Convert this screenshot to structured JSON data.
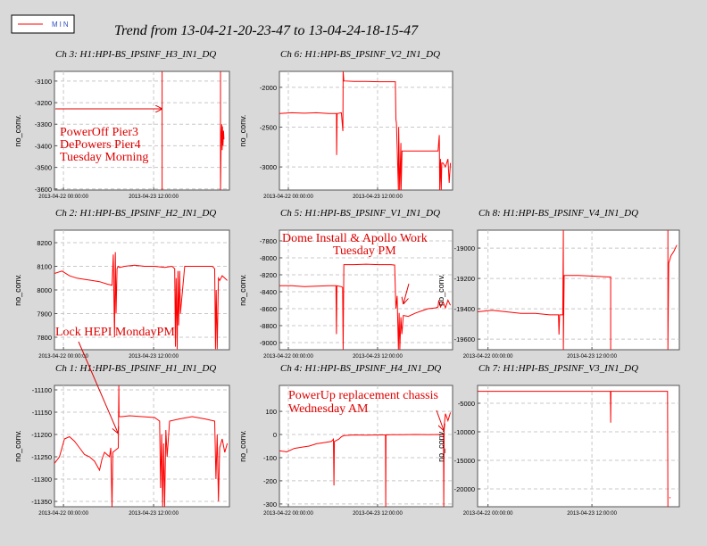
{
  "title": "Trend from 13-04-21-20-23-47 to 13-04-24-18-15-47",
  "legend": {
    "label": "MIN",
    "color": "#ff0000"
  },
  "chart_data": [
    {
      "type": "line",
      "title": "Ch 3: H1:HPI-BS_IPSINF_H3_IN1_DQ",
      "ylabel": "no_conv.",
      "x": [
        43,
        43,
        43,
        66.3,
        66.3,
        66.6,
        66.8,
        67,
        67.1,
        67.3,
        67.5,
        67.7
      ],
      "series": [
        {
          "color": "#ff0000",
          "values": [
            -3055,
            -3605,
            null,
            -3055,
            -3605,
            -3360,
            -3300,
            -3420,
            -3310,
            -3400,
            -3330,
            -3370
          ]
        }
      ],
      "xlim": [
        0,
        69.87
      ],
      "ylim": [
        -3605,
        -3055
      ],
      "xticks": [
        {
          "value": 3.6,
          "label": "2013-04-22 00:00:00"
        },
        {
          "value": 39.6,
          "label": "2013-04-23 12:00:00"
        }
      ],
      "yticks": [
        -3100,
        -3200,
        -3300,
        -3400,
        -3500,
        -3600
      ],
      "grid": true,
      "annotations": [
        {
          "text": "PowerOff Pier3"
        },
        {
          "text": "DePowers Pier4"
        },
        {
          "text": "Tuesday Morning"
        }
      ]
    },
    {
      "type": "line",
      "title": "Ch 6: H1:HPI-BS_IPSINF_V2_IN1_DQ",
      "ylabel": "no_conv.",
      "x": [
        0,
        5,
        10,
        15,
        20,
        23,
        23.1,
        23.3,
        25,
        25.6,
        25.7,
        26,
        30,
        35,
        40,
        45,
        46.8,
        47,
        47.2,
        48,
        48.1,
        48.5,
        49,
        49.1,
        49.5,
        50,
        55,
        60,
        64,
        64.5,
        64.7,
        65,
        65.3,
        65.5,
        66,
        67,
        68,
        68.5,
        69
      ],
      "series": [
        {
          "color": "#ff0000",
          "values": [
            -2330,
            -2320,
            -2325,
            -2320,
            -2330,
            -2330,
            -2850,
            -2330,
            -2320,
            -2550,
            -1800,
            -1920,
            -1925,
            -1925,
            -1930,
            -1930,
            -1930,
            -2400,
            -2450,
            -3290,
            -2500,
            -3290,
            -2700,
            -3290,
            -2800,
            -2800,
            -2800,
            -2800,
            -2800,
            -2600,
            -3290,
            -2900,
            -3290,
            -2950,
            -2950,
            -3000,
            -2900,
            -3200,
            -2950
          ]
        }
      ],
      "xlim": [
        0,
        69.87
      ],
      "ylim": [
        -3290,
        -1800
      ],
      "xticks": [
        {
          "value": 3.6,
          "label": "2013-04-22 00:00:00"
        },
        {
          "value": 39.6,
          "label": "2013-04-23 12:00:00"
        }
      ],
      "yticks": [
        -2000,
        -2500,
        -3000
      ],
      "grid": true,
      "annotations": []
    },
    {
      "type": "line",
      "title": "Ch 2: H1:HPI-BS_IPSINF_H2_IN1_DQ",
      "ylabel": "no_conv.",
      "x": [
        0,
        3,
        6,
        9,
        12,
        15,
        18,
        21,
        23,
        23.5,
        24,
        24.3,
        24.6,
        25,
        25.4,
        26,
        28,
        32,
        36,
        40,
        44,
        47,
        48,
        48.3,
        48.6,
        49,
        49.3,
        49.6,
        50,
        50.3,
        52,
        56,
        60,
        63,
        64,
        64.3,
        64.6,
        65,
        65.5,
        66,
        67,
        68,
        69
      ],
      "series": [
        {
          "color": "#ff0000",
          "values": [
            8070,
            8080,
            8060,
            8050,
            8045,
            8040,
            8035,
            8025,
            8020,
            8150,
            7800,
            8160,
            7900,
            8090,
            8100,
            8095,
            8100,
            8105,
            8100,
            8100,
            8095,
            8100,
            8090,
            7760,
            8050,
            7750,
            8080,
            7850,
            8080,
            7900,
            8100,
            8100,
            8100,
            8100,
            8090,
            7750,
            8000,
            7750,
            8050,
            8040,
            8060,
            8050,
            8040
          ]
        }
      ],
      "xlim": [
        0,
        69.87
      ],
      "ylim": [
        7747,
        8253
      ],
      "xticks": [
        {
          "value": 3.6,
          "label": "2013-04-22 00:00:00"
        },
        {
          "value": 39.6,
          "label": "2013-04-23 12:00:00"
        }
      ],
      "yticks": [
        7800,
        7900,
        8000,
        8100,
        8200
      ],
      "grid": true,
      "annotations": [
        {
          "text": "Lock HEPI MondayPM"
        }
      ]
    },
    {
      "type": "line",
      "title": "Ch 5: H1:HPI-BS_IPSINF_V1_IN1_DQ",
      "ylabel": "no_conv.",
      "x": [
        0,
        5,
        10,
        15,
        20,
        22.8,
        23,
        23.2,
        25,
        25.5,
        25.7,
        26,
        30,
        35,
        40,
        45,
        46.5,
        47,
        47.5,
        48,
        48.3,
        48.6,
        49,
        49.4,
        50,
        52,
        55,
        58,
        60,
        63,
        64,
        64.3,
        65,
        66,
        67,
        68,
        69
      ],
      "series": [
        {
          "color": "#ff0000",
          "values": [
            -8330,
            -8330,
            -8340,
            -8335,
            -8330,
            -8330,
            -8900,
            -8330,
            -8340,
            -8350,
            -9080,
            -8080,
            -8080,
            -8075,
            -8080,
            -8080,
            -8085,
            -8600,
            -8450,
            -9080,
            -8650,
            -9080,
            -8700,
            -8900,
            -8680,
            -8690,
            -8650,
            -8620,
            -8600,
            -8590,
            -8580,
            -8500,
            -8580,
            -8520,
            -8590,
            -8500,
            -8560
          ]
        }
      ],
      "xlim": [
        0,
        69.87
      ],
      "ylim": [
        -9084,
        -7674
      ],
      "xticks": [
        {
          "value": 3.6,
          "label": "2013-04-22 00:00:00"
        },
        {
          "value": 39.6,
          "label": "2013-04-23 12:00:00"
        }
      ],
      "yticks": [
        -7800,
        -8000,
        -8200,
        -8400,
        -8600,
        -8800,
        -9000
      ],
      "grid": true,
      "annotations": [
        {
          "text": "Dome Install & Apollo Work"
        },
        {
          "text": "Tuesday PM"
        }
      ]
    },
    {
      "type": "line",
      "title": "Ch 8: H1:HPI-BS_IPSINF_V4_IN1_DQ",
      "ylabel": "no_conv.",
      "x": [
        0,
        5,
        10,
        15,
        20,
        25,
        28,
        28.2,
        28.4,
        29.5,
        29.7,
        29.7,
        30,
        35,
        40,
        45,
        46.1,
        46.1,
        46.1,
        65.9,
        65.9,
        66.2,
        67,
        68,
        69
      ],
      "series": [
        {
          "color": "#ff0000",
          "values": [
            -19420,
            -19410,
            -19420,
            -19430,
            -19430,
            -19440,
            -19440,
            -19570,
            -19440,
            -19440,
            -18882,
            -19670,
            -19180,
            -19180,
            -19185,
            -19190,
            -19190,
            -19670,
            null,
            -18882,
            -19670,
            -19100,
            -19050,
            -19020,
            -18980
          ]
        }
      ],
      "xlim": [
        0,
        69.87
      ],
      "ylim": [
        -19670,
        -18882
      ],
      "xticks": [
        {
          "value": 3.6,
          "label": "2013-04-22 00:00:00"
        },
        {
          "value": 39.6,
          "label": "2013-04-23 12:00:00"
        }
      ],
      "yticks": [
        -19000,
        -19200,
        -19400,
        -19600
      ],
      "grid": true,
      "annotations": []
    },
    {
      "type": "line",
      "title": "Ch 1: H1:HPI-BS_IPSINF_H1_IN1_DQ",
      "ylabel": "no_conv.",
      "x": [
        0,
        2,
        4,
        6,
        8,
        10,
        12,
        14,
        16,
        17,
        18,
        19,
        20,
        21,
        22,
        22.5,
        23,
        23.3,
        25.5,
        25.7,
        25.8,
        27,
        30,
        35,
        40,
        42,
        42.4,
        42.8,
        43.2,
        43.6,
        44,
        44.5,
        45,
        46,
        50,
        55,
        60,
        64,
        64.5,
        65,
        65.5,
        66,
        67,
        68,
        69
      ],
      "series": [
        {
          "color": "#ff0000",
          "values": [
            -11265,
            -11250,
            -11210,
            -11205,
            -11215,
            -11230,
            -11245,
            -11250,
            -11260,
            -11270,
            -11280,
            -11255,
            -11240,
            -11245,
            -11250,
            -11230,
            -11362,
            -11240,
            -11230,
            -11090,
            -11160,
            -11160,
            -11158,
            -11160,
            -11162,
            -11170,
            -11320,
            -11200,
            -11362,
            -11220,
            -11362,
            -11190,
            -11250,
            -11170,
            -11165,
            -11160,
            -11165,
            -11170,
            -11300,
            -11200,
            -11350,
            -11230,
            -11210,
            -11240,
            -11220
          ]
        }
      ],
      "xlim": [
        0,
        69.87
      ],
      "ylim": [
        -11362,
        -11090
      ],
      "xticks": [
        {
          "value": 3.6,
          "label": "2013-04-22 00:00:00"
        },
        {
          "value": 39.6,
          "label": "2013-04-23 12:00:00"
        }
      ],
      "yticks": [
        -11100,
        -11150,
        -11200,
        -11250,
        -11300,
        -11350
      ],
      "grid": true,
      "annotations": []
    },
    {
      "type": "line",
      "title": "Ch 4: H1:HPI-BS_IPSINF_H4_IN1_DQ",
      "ylabel": "no_conv.",
      "x": [
        0,
        3,
        6,
        9,
        12,
        15,
        18,
        21,
        21.8,
        22,
        22.2,
        24,
        25,
        26,
        30,
        35,
        40,
        42.8,
        42.9,
        43,
        45,
        50,
        55,
        60,
        65,
        66.2,
        66.3,
        66.5,
        67,
        68,
        69
      ],
      "series": [
        {
          "color": "#ff0000",
          "values": [
            -70,
            -75,
            -60,
            -55,
            -50,
            -40,
            -35,
            -30,
            -20,
            -220,
            -30,
            -20,
            -10,
            -5,
            -2,
            -3,
            -2,
            -2,
            -312,
            -2,
            -1,
            -1,
            0,
            -1,
            0,
            -2,
            -312,
            40,
            90,
            60,
            95
          ]
        }
      ],
      "xlim": [
        0,
        69.87
      ],
      "ylim": [
        -312,
        212
      ],
      "xticks": [
        {
          "value": 3.6,
          "label": "2013-04-22 00:00:00"
        },
        {
          "value": 39.6,
          "label": "2013-04-23 12:00:00"
        }
      ],
      "yticks": [
        100,
        0,
        -100,
        -200,
        -300
      ],
      "grid": true,
      "annotations": [
        {
          "text": "PowerUp replacement chassis"
        },
        {
          "text": "Wednesday AM"
        }
      ]
    },
    {
      "type": "line",
      "title": "Ch 7: H1:HPI-BS_IPSINF_V3_IN1_DQ",
      "ylabel": "no_conv.",
      "x": [
        0,
        10,
        20,
        30,
        40,
        46,
        46.1,
        46.2,
        50,
        60,
        65.8,
        65.9,
        66.1,
        66.4,
        66.8
      ],
      "series": [
        {
          "color": "#ff0000",
          "values": [
            -2900,
            -2900,
            -2900,
            -2900,
            -2900,
            -2900,
            -8400,
            -2900,
            -2900,
            -2900,
            -2900,
            -23125,
            null,
            -21500,
            -21600
          ]
        }
      ],
      "xlim": [
        0,
        69.87
      ],
      "ylim": [
        -23125,
        -1875
      ],
      "xticks": [
        {
          "value": 3.6,
          "label": "2013-04-22 00:00:00"
        },
        {
          "value": 39.6,
          "label": "2013-04-23 12:00:00"
        }
      ],
      "yticks": [
        -5000,
        -10000,
        -15000,
        -20000
      ],
      "grid": true,
      "annotations": []
    }
  ]
}
